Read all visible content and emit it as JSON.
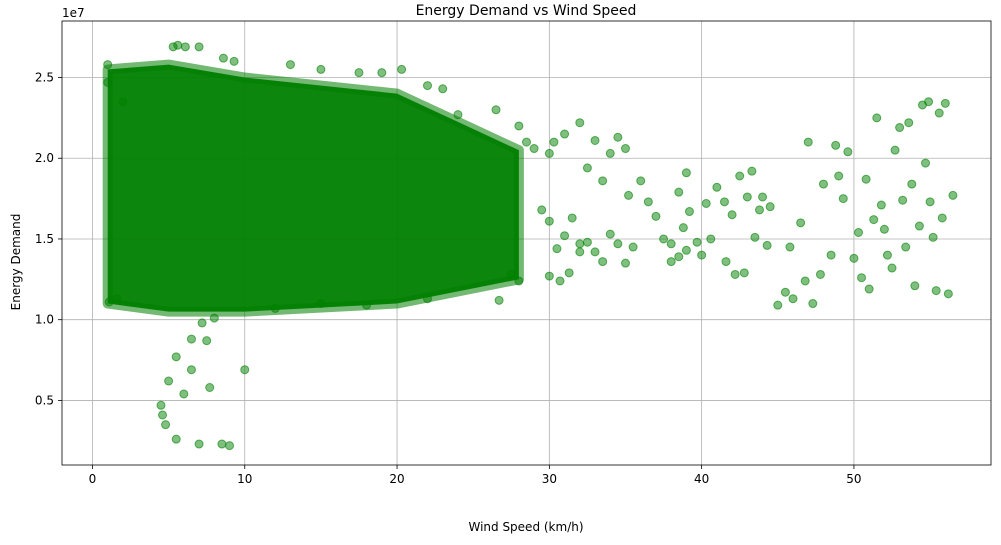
{
  "chart_data": {
    "type": "scatter",
    "title": "Energy Demand vs Wind Speed",
    "xlabel": "Wind Speed (km/h)",
    "ylabel": "Energy Demand",
    "y_offset_label": "1e7",
    "xlim": [
      -2,
      59
    ],
    "ylim": [
      1000000,
      28500000
    ],
    "x_ticks": [
      0,
      10,
      20,
      30,
      40,
      50
    ],
    "x_tick_labels": [
      "0",
      "10",
      "20",
      "30",
      "40",
      "50"
    ],
    "y_ticks": [
      5000000,
      10000000,
      15000000,
      20000000,
      25000000
    ],
    "y_tick_labels": [
      "0.5",
      "1.0",
      "1.5",
      "2.0",
      "2.5"
    ],
    "grid": true,
    "marker_color": "#008000",
    "series": [
      {
        "points": [
          [
            4.5,
            4700000
          ],
          [
            4.6,
            4100000
          ],
          [
            4.8,
            3500000
          ],
          [
            5.0,
            6200000
          ],
          [
            5.5,
            7700000
          ],
          [
            5.5,
            2600000
          ],
          [
            6.0,
            5400000
          ],
          [
            6.5,
            8800000
          ],
          [
            6.5,
            6900000
          ],
          [
            7.0,
            2300000
          ],
          [
            7.2,
            9800000
          ],
          [
            7.5,
            8700000
          ],
          [
            7.7,
            5800000
          ],
          [
            8.5,
            2300000
          ],
          [
            9.0,
            2200000
          ],
          [
            10.0,
            6900000
          ],
          [
            5.3,
            26900000
          ],
          [
            5.6,
            27000000
          ],
          [
            6.1,
            26900000
          ],
          [
            7.0,
            26900000
          ],
          [
            8.6,
            26200000
          ],
          [
            9.3,
            26000000
          ],
          [
            1.0,
            25800000
          ],
          [
            1.0,
            24700000
          ],
          [
            2.0,
            23500000
          ],
          [
            1.1,
            11100000
          ],
          [
            1.6,
            11300000
          ],
          [
            13.0,
            25800000
          ],
          [
            15.0,
            25500000
          ],
          [
            17.5,
            25300000
          ],
          [
            19.0,
            25300000
          ],
          [
            20.3,
            25500000
          ],
          [
            22.0,
            24500000
          ],
          [
            23.0,
            24300000
          ],
          [
            24.0,
            22700000
          ],
          [
            26.5,
            23000000
          ],
          [
            28.0,
            22000000
          ],
          [
            28.5,
            21000000
          ],
          [
            29.0,
            20600000
          ],
          [
            30.0,
            20300000
          ],
          [
            30.3,
            21000000
          ],
          [
            31.0,
            21500000
          ],
          [
            32.0,
            22200000
          ],
          [
            32.5,
            19400000
          ],
          [
            33.0,
            21100000
          ],
          [
            33.5,
            18600000
          ],
          [
            34.0,
            20300000
          ],
          [
            34.5,
            21300000
          ],
          [
            35.0,
            20600000
          ],
          [
            35.2,
            17700000
          ],
          [
            29.5,
            16800000
          ],
          [
            30.0,
            16100000
          ],
          [
            30.5,
            14400000
          ],
          [
            31.0,
            15200000
          ],
          [
            31.5,
            16300000
          ],
          [
            32.0,
            14200000
          ],
          [
            32.5,
            14800000
          ],
          [
            33.0,
            14200000
          ],
          [
            33.5,
            13600000
          ],
          [
            34.0,
            15300000
          ],
          [
            34.5,
            14700000
          ],
          [
            35.0,
            13500000
          ],
          [
            30.0,
            12700000
          ],
          [
            30.7,
            12400000
          ],
          [
            31.3,
            12900000
          ],
          [
            32.0,
            14700000
          ],
          [
            35.5,
            14500000
          ],
          [
            36.0,
            18600000
          ],
          [
            36.5,
            17300000
          ],
          [
            37.0,
            16400000
          ],
          [
            37.5,
            15000000
          ],
          [
            38.0,
            14700000
          ],
          [
            38.5,
            17900000
          ],
          [
            39.0,
            19100000
          ],
          [
            39.2,
            16700000
          ],
          [
            38.0,
            13600000
          ],
          [
            38.5,
            13900000
          ],
          [
            39.0,
            14300000
          ],
          [
            39.7,
            14800000
          ],
          [
            40.3,
            17200000
          ],
          [
            40.6,
            15000000
          ],
          [
            41.0,
            18200000
          ],
          [
            41.5,
            17300000
          ],
          [
            41.6,
            13600000
          ],
          [
            42.0,
            16500000
          ],
          [
            42.2,
            12800000
          ],
          [
            42.5,
            18900000
          ],
          [
            43.0,
            17600000
          ],
          [
            43.3,
            19200000
          ],
          [
            43.5,
            15100000
          ],
          [
            44.0,
            17600000
          ],
          [
            44.3,
            14600000
          ],
          [
            44.5,
            17000000
          ],
          [
            45.0,
            10900000
          ],
          [
            45.5,
            11700000
          ],
          [
            45.8,
            14500000
          ],
          [
            46.0,
            11300000
          ],
          [
            46.5,
            16000000
          ],
          [
            46.8,
            12400000
          ],
          [
            47.0,
            21000000
          ],
          [
            47.3,
            11000000
          ],
          [
            47.8,
            12800000
          ],
          [
            48.0,
            18400000
          ],
          [
            48.5,
            14000000
          ],
          [
            48.8,
            20800000
          ],
          [
            49.0,
            18900000
          ],
          [
            49.3,
            17500000
          ],
          [
            49.6,
            20400000
          ],
          [
            50.0,
            13800000
          ],
          [
            50.3,
            15400000
          ],
          [
            50.5,
            12600000
          ],
          [
            50.8,
            18700000
          ],
          [
            51.0,
            11900000
          ],
          [
            51.3,
            16200000
          ],
          [
            51.5,
            22500000
          ],
          [
            51.8,
            17100000
          ],
          [
            52.0,
            15600000
          ],
          [
            52.2,
            14000000
          ],
          [
            52.5,
            13200000
          ],
          [
            52.7,
            20500000
          ],
          [
            53.0,
            21900000
          ],
          [
            53.2,
            17400000
          ],
          [
            53.4,
            14500000
          ],
          [
            53.6,
            22200000
          ],
          [
            53.8,
            18400000
          ],
          [
            54.0,
            12100000
          ],
          [
            54.3,
            15800000
          ],
          [
            54.5,
            23300000
          ],
          [
            54.7,
            19700000
          ],
          [
            54.9,
            23500000
          ],
          [
            55.0,
            17300000
          ],
          [
            55.2,
            15100000
          ],
          [
            55.4,
            11800000
          ],
          [
            55.6,
            22800000
          ],
          [
            55.8,
            16300000
          ],
          [
            56.0,
            23400000
          ],
          [
            56.2,
            11600000
          ],
          [
            56.5,
            17700000
          ],
          [
            42.8,
            12900000
          ],
          [
            43.8,
            16800000
          ],
          [
            40.0,
            14000000
          ],
          [
            38.8,
            15700000
          ],
          [
            26.7,
            11200000
          ],
          [
            27.5,
            12800000
          ],
          [
            28.0,
            12400000
          ],
          [
            15.0,
            11000000
          ],
          [
            12.0,
            10700000
          ],
          [
            8.0,
            10100000
          ],
          [
            18.0,
            10900000
          ],
          [
            22.0,
            11300000
          ]
        ]
      }
    ],
    "dense_band": {
      "description": "dense cluster of overlapping markers",
      "x_range": [
        1,
        28
      ],
      "y_min_at": [
        [
          1,
          11000000
        ],
        [
          5,
          10500000
        ],
        [
          10,
          10500000
        ],
        [
          20,
          11000000
        ],
        [
          28,
          12500000
        ]
      ],
      "y_max_at": [
        [
          1,
          25500000
        ],
        [
          5,
          25800000
        ],
        [
          10,
          25000000
        ],
        [
          20,
          24000000
        ],
        [
          28,
          20500000
        ]
      ]
    }
  }
}
